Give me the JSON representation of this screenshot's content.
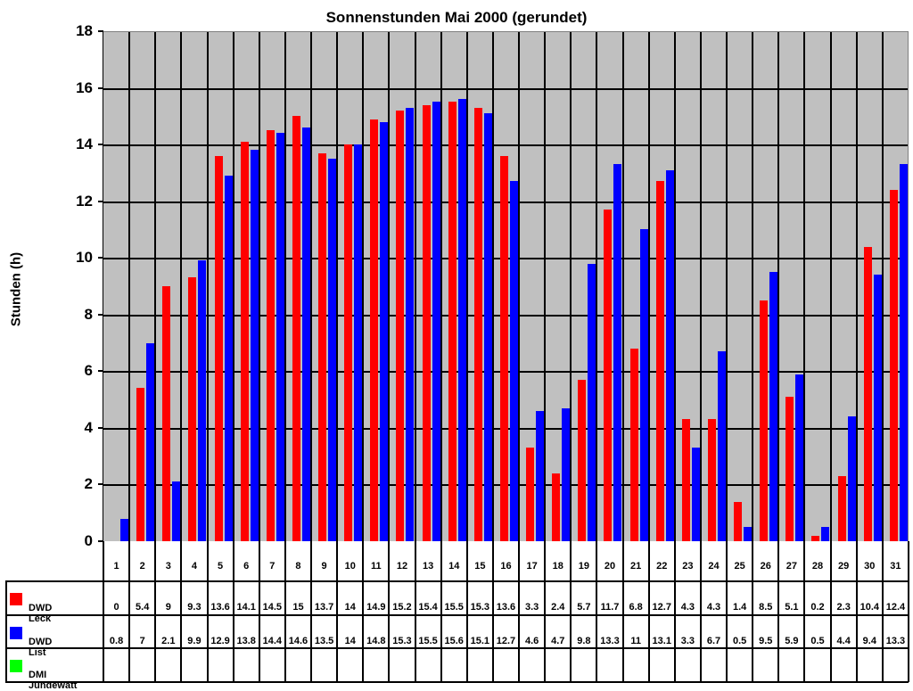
{
  "chart_data": {
    "type": "bar",
    "title": "Sonnenstunden Mai 2000 (gerundet)",
    "xlabel": "",
    "ylabel": "Stunden (h)",
    "ylim": [
      0,
      18
    ],
    "yticks": [
      0,
      2,
      4,
      6,
      8,
      10,
      12,
      14,
      16,
      18
    ],
    "grid": true,
    "legend_position": "data-table-left",
    "categories": [
      "1",
      "2",
      "3",
      "4",
      "5",
      "6",
      "7",
      "8",
      "9",
      "10",
      "11",
      "12",
      "13",
      "14",
      "15",
      "16",
      "17",
      "18",
      "19",
      "20",
      "21",
      "22",
      "23",
      "24",
      "25",
      "26",
      "27",
      "28",
      "29",
      "30",
      "31"
    ],
    "series": [
      {
        "name": "DWD Leck",
        "color": "#ff0000",
        "values": [
          0,
          5.4,
          9,
          9.3,
          13.6,
          14.1,
          14.5,
          15,
          13.7,
          14,
          14.9,
          15.2,
          15.4,
          15.5,
          15.3,
          13.6,
          3.3,
          2.4,
          5.7,
          11.7,
          6.8,
          12.7,
          4.3,
          4.3,
          1.4,
          8.5,
          5.1,
          0.2,
          2.3,
          10.4,
          12.4
        ]
      },
      {
        "name": "DWD List",
        "color": "#0000ff",
        "values": [
          0.8,
          7,
          2.1,
          9.9,
          12.9,
          13.8,
          14.4,
          14.6,
          13.5,
          14,
          14.8,
          15.3,
          15.5,
          15.6,
          15.1,
          12.7,
          4.6,
          4.7,
          9.8,
          13.3,
          11,
          13.1,
          3.3,
          6.7,
          0.5,
          9.5,
          5.9,
          0.5,
          4.4,
          9.4,
          13.3
        ]
      },
      {
        "name": "DMI Jündewatt",
        "color": "#00ff00",
        "values": [
          null,
          null,
          null,
          null,
          null,
          null,
          null,
          null,
          null,
          null,
          null,
          null,
          null,
          null,
          null,
          null,
          null,
          null,
          null,
          null,
          null,
          null,
          null,
          null,
          null,
          null,
          null,
          null,
          null,
          null,
          null
        ]
      }
    ]
  }
}
